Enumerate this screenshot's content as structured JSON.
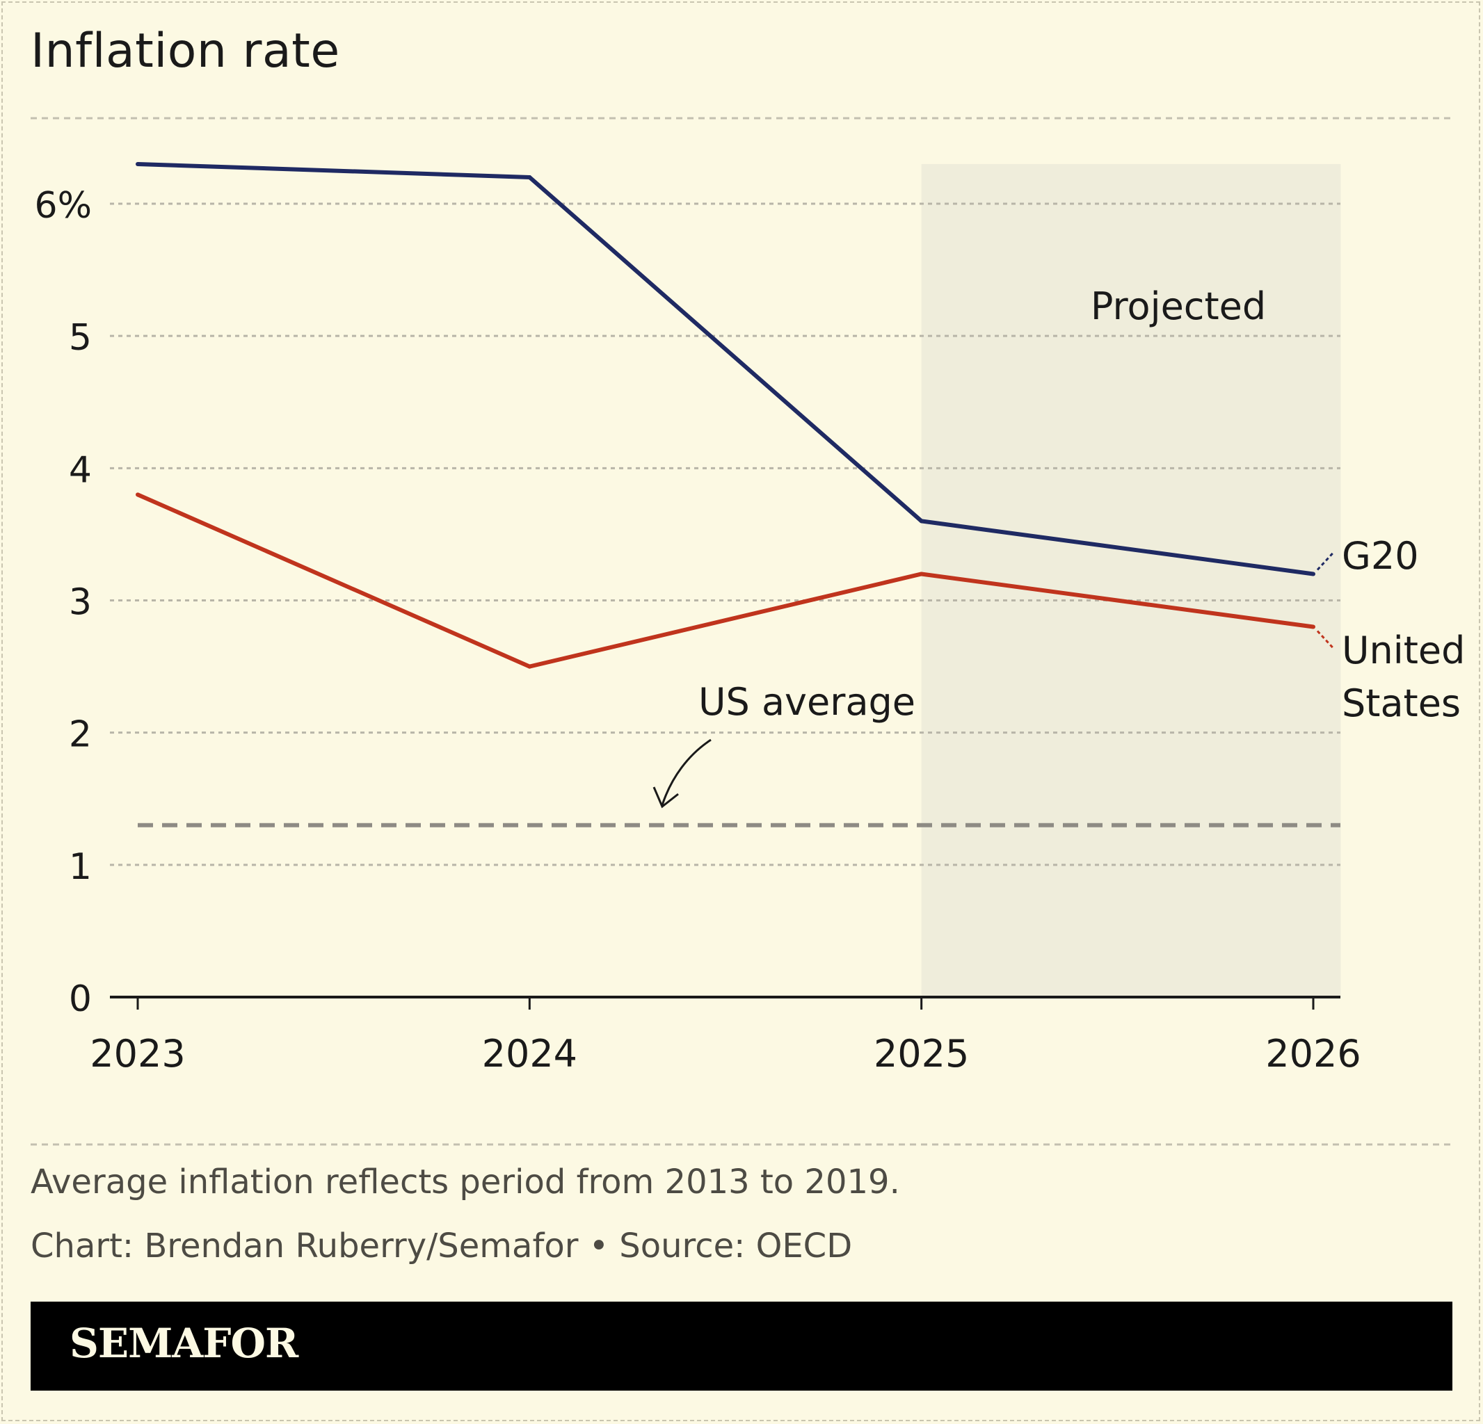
{
  "header": {
    "title": "Inflation rate"
  },
  "chart_data": {
    "type": "line",
    "title": "Inflation rate",
    "categories": [
      "2023",
      "2024",
      "2025",
      "2026"
    ],
    "x": [
      2023,
      2024,
      2025,
      2026
    ],
    "series": [
      {
        "name": "G20",
        "values": [
          6.3,
          6.2,
          3.6,
          3.2
        ],
        "color": "#1f2a63"
      },
      {
        "name": "United States",
        "label_lines": [
          "United",
          "States"
        ],
        "values": [
          3.8,
          2.5,
          3.2,
          2.8
        ],
        "color": "#c0341d"
      }
    ],
    "reference_line": {
      "label": "US average",
      "value": 1.3,
      "color": "#8e8b84"
    },
    "shaded_region": {
      "label": "Projected",
      "x_start": 2025,
      "x_end": 2026.07,
      "color": "#efeddb"
    },
    "ylim": [
      0,
      6.3
    ],
    "yticks": [
      0,
      1,
      2,
      3,
      4,
      5,
      6
    ],
    "ytick_labels": [
      "0",
      "1",
      "2",
      "3",
      "4",
      "5",
      "6%"
    ],
    "xlabel": "",
    "ylabel": "",
    "grid": true
  },
  "notes": {
    "footnote": "Average inflation reflects period from 2013 to 2019.",
    "credit": "Chart: Brendan Ruberry/Semafor • Source: OECD"
  },
  "footer": {
    "brand": "SEMAFOR"
  },
  "colors": {
    "background": "#fcf9e3",
    "axis": "#1a1a1a",
    "grid": "#b8b5a8"
  }
}
